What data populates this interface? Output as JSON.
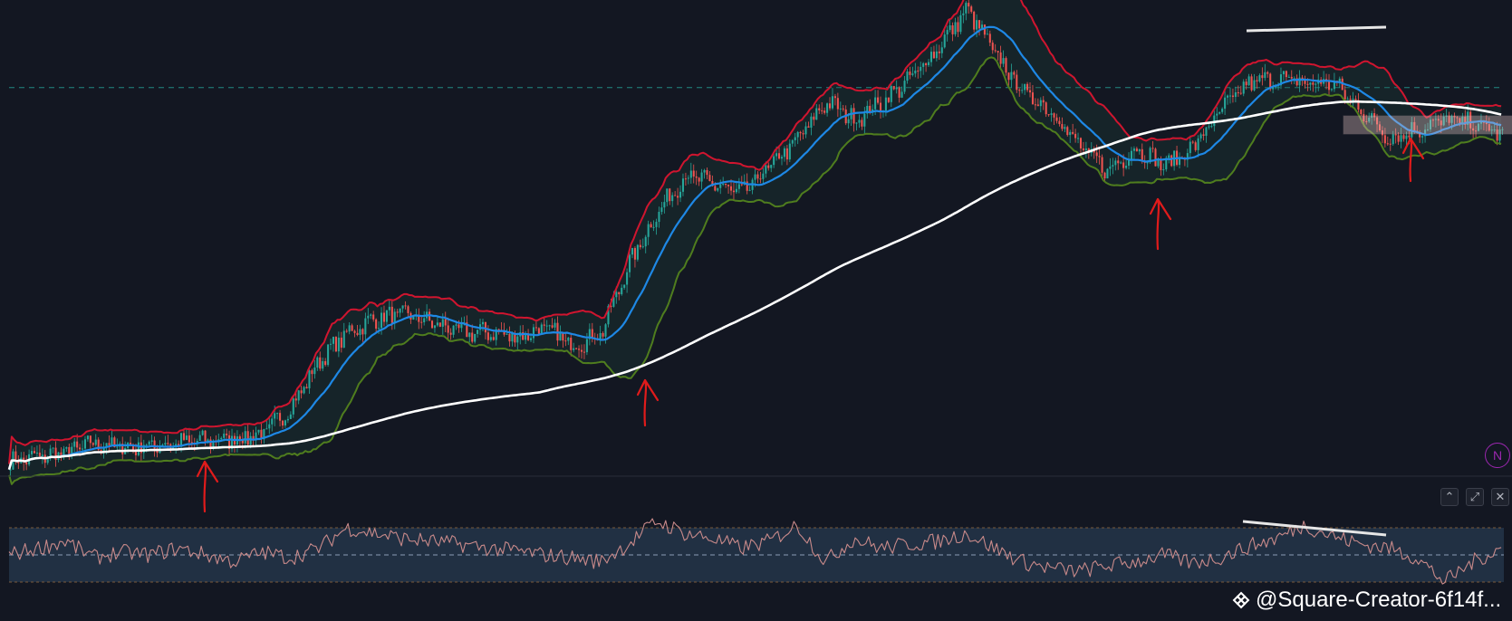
{
  "colors": {
    "background": "#131722",
    "up": "#26a69a",
    "down": "#ef5350",
    "bb_upper": "#d0152f",
    "bb_basis": "#1e88e5",
    "bb_lower": "#4f7d1e",
    "ma_long": "#ffffff",
    "rsi_line": "#c98a8a",
    "rsi_band": "#243347",
    "annotation_arrow": "#e01b1b",
    "trendline": "#e6e6e6"
  },
  "indicator_badge": {
    "label": "N"
  },
  "pane_controls": {
    "collapse_icon": "chevron-up-icon",
    "maximize_icon": "expand-icon",
    "close_icon": "close-icon"
  },
  "watermark": {
    "text": "@Square-Creator-6f14f..."
  },
  "chart_data": [
    {
      "type": "candlestick",
      "title": "",
      "overlays": [
        "Bollinger Bands (upper, basis, lower)",
        "long moving average"
      ],
      "price_path": [
        0.02,
        0.03,
        0.04,
        0.06,
        0.05,
        0.055,
        0.06,
        0.065,
        0.07,
        0.08,
        0.14,
        0.24,
        0.3,
        0.33,
        0.34,
        0.32,
        0.3,
        0.3,
        0.29,
        0.31,
        0.27,
        0.3,
        0.45,
        0.56,
        0.64,
        0.62,
        0.6,
        0.66,
        0.72,
        0.8,
        0.76,
        0.8,
        0.85,
        0.92,
        1.0,
        0.9,
        0.82,
        0.78,
        0.7,
        0.65,
        0.7,
        0.66,
        0.7,
        0.78,
        0.84,
        0.85,
        0.84,
        0.84,
        0.78,
        0.72,
        0.74,
        0.76,
        0.75,
        0.73
      ],
      "horizontal_line": {
        "style": "dashed",
        "level": 0.83
      },
      "grid": false
    },
    {
      "type": "line",
      "title": "",
      "indicator": "RSI",
      "band": {
        "upper": 70,
        "lower": 30,
        "mid": 50
      },
      "rsi_path": [
        50,
        55,
        60,
        48,
        52,
        50,
        55,
        50,
        45,
        52,
        48,
        55,
        70,
        66,
        62,
        60,
        58,
        55,
        53,
        50,
        48,
        45,
        58,
        75,
        66,
        62,
        55,
        60,
        72,
        45,
        62,
        55,
        58,
        60,
        66,
        55,
        45,
        40,
        38,
        42,
        45,
        50,
        44,
        48,
        56,
        62,
        72,
        64,
        58,
        55,
        48,
        30,
        45,
        55
      ]
    }
  ]
}
